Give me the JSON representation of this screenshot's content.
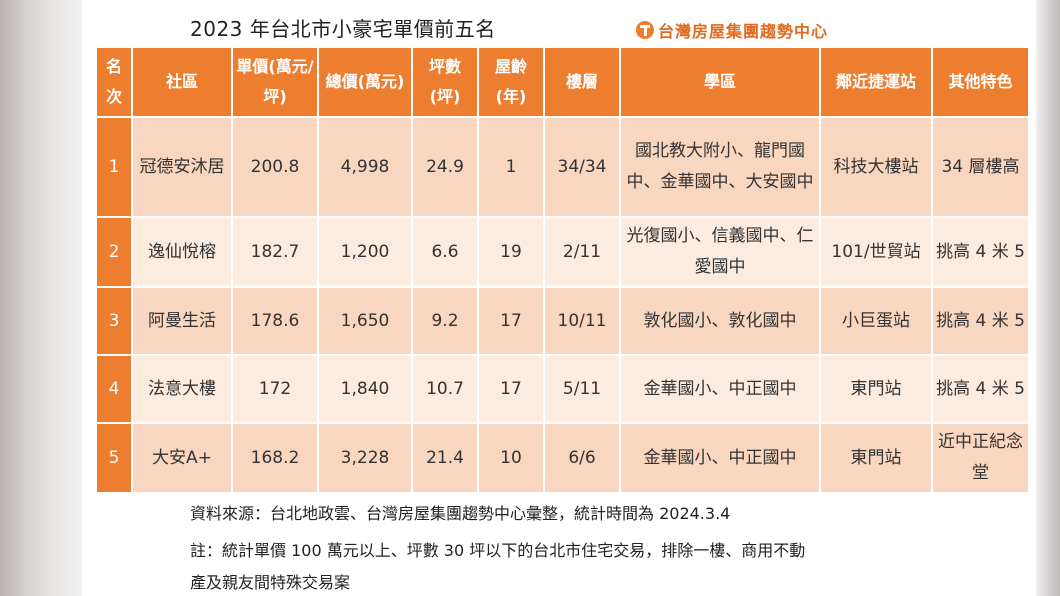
{
  "title": "2023 年台北市小豪宅單價前五名",
  "logo_text": "台灣房屋集團趨勢中心",
  "table": {
    "headers": [
      "名次",
      "社區",
      "單價(萬元/坪)",
      "總價(萬元)",
      "坪數(坪)",
      "屋齡(年)",
      "樓層",
      "學區",
      "鄰近捷運站",
      "其他特色"
    ],
    "rows": [
      [
        "1",
        "冠德安沐居",
        "200.8",
        "4,998",
        "24.9",
        "1",
        "34/34",
        "國北教大附小、龍門國中、金華國中、大安國中",
        "科技大樓站",
        "34 層樓高"
      ],
      [
        "2",
        "逸仙悅榕",
        "182.7",
        "1,200",
        "6.6",
        "19",
        "2/11",
        "光復國小、信義國中、仁愛國中",
        "101/世貿站",
        "挑高 4 米 5"
      ],
      [
        "3",
        "阿曼生活",
        "178.6",
        "1,650",
        "9.2",
        "17",
        "10/11",
        "敦化國小、敦化國中",
        "小巨蛋站",
        "挑高 4 米 5"
      ],
      [
        "4",
        "法意大樓",
        "172",
        "1,840",
        "10.7",
        "17",
        "5/11",
        "金華國小、中正國中",
        "東門站",
        "挑高 4 米 5"
      ],
      [
        "5",
        "大安A+",
        "168.2",
        "3,228",
        "21.4",
        "10",
        "6/6",
        "金華國小、中正國中",
        "東門站",
        "近中正紀念堂"
      ]
    ]
  },
  "notes": {
    "source": "資料來源：台北地政雲、台灣房屋集團趨勢中心彙整，統計時間為 2024.3.4",
    "note_line1": "註：統計單價 100 萬元以上、坪數 30 坪以下的台北市住宅交易，排除一樓、商用不動",
    "note_line2": "產及親友間特殊交易案"
  },
  "colors": {
    "header": "#ee7e2f",
    "row_odd": "#f9d6bf",
    "row_even": "#fcebdf",
    "logo": "#e06a1e"
  },
  "icons": {
    "logo": "taiwan-realty-logo-icon"
  }
}
